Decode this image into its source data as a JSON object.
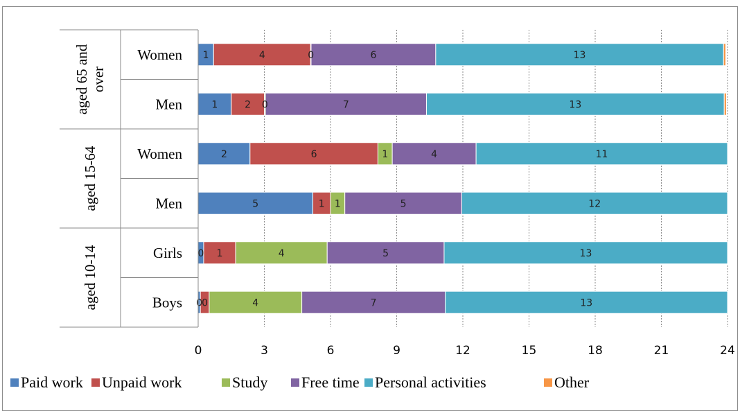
{
  "chart_data": {
    "type": "bar",
    "orientation": "horizontal",
    "stacked": true,
    "xlim": [
      0,
      24
    ],
    "x_ticks": [
      "0",
      "3",
      "6",
      "9",
      "12",
      "15",
      "18",
      "21",
      "24"
    ],
    "grid": "vertical dashed",
    "legend_position": "bottom",
    "groups": [
      {
        "label_lines": [
          "aged 65 and",
          "over"
        ],
        "categories": [
          "Women",
          "Men"
        ]
      },
      {
        "label_lines": [
          "aged 15-64"
        ],
        "categories": [
          "Women",
          "Men"
        ]
      },
      {
        "label_lines": [
          "aged 10-14"
        ],
        "categories": [
          "Girls",
          "Boys"
        ]
      }
    ],
    "categories": [
      "Women",
      "Men",
      "Women",
      "Men",
      "Girls",
      "Boys"
    ],
    "series": [
      {
        "name": "Paid work",
        "color": "#4F81BD",
        "values": [
          0.7,
          1.5,
          2.35,
          5.2,
          0.25,
          0.1
        ],
        "labels": [
          "1",
          "1",
          "2",
          "5",
          "0",
          "0"
        ]
      },
      {
        "name": "Unpaid work",
        "color": "#C0504D",
        "values": [
          4.4,
          1.5,
          5.8,
          0.8,
          1.45,
          0.4
        ],
        "labels": [
          "4",
          "2",
          "6",
          "1",
          "1",
          "0"
        ]
      },
      {
        "name": "Study",
        "color": "#9BBB59",
        "values": [
          0.02,
          0.05,
          0.65,
          0.65,
          4.15,
          4.2
        ],
        "labels": [
          "0",
          "0",
          "1",
          "1",
          "4",
          "4"
        ]
      },
      {
        "name": "Free time",
        "color": "#8064A2",
        "values": [
          5.65,
          7.3,
          3.8,
          5.3,
          5.3,
          6.5
        ],
        "labels": [
          "6",
          "7",
          "4",
          "5",
          "5",
          "7"
        ]
      },
      {
        "name": "Personal activities",
        "color": "#4BACC6",
        "values": [
          13.05,
          13.5,
          11.4,
          12.05,
          12.85,
          12.8
        ],
        "labels": [
          "13",
          "13",
          "11",
          "12",
          "13",
          "13"
        ]
      },
      {
        "name": "Other",
        "color": "#F79646",
        "values": [
          0.1,
          0.1,
          0.0,
          0.0,
          0.0,
          0.0
        ],
        "labels": [
          "",
          "",
          "",
          "",
          "",
          ""
        ]
      }
    ]
  }
}
